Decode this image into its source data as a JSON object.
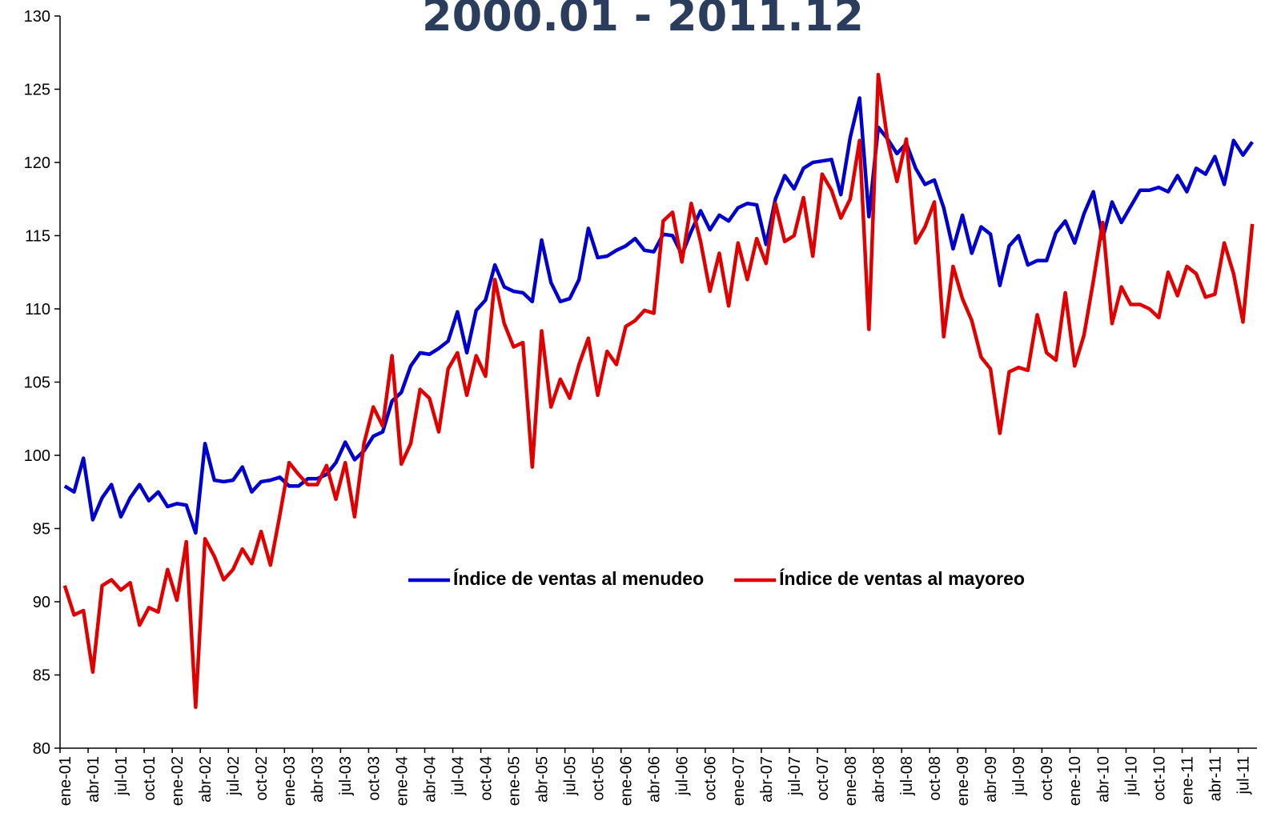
{
  "chart_data": {
    "type": "line",
    "title": "2000.01 - 2011.12",
    "categories": [
      "ene-01",
      null,
      null,
      "abr-01",
      null,
      null,
      "jul-01",
      null,
      null,
      "oct-01",
      null,
      null,
      "ene-02",
      null,
      null,
      "abr-02",
      null,
      null,
      "jul-02",
      null,
      null,
      "oct-02",
      null,
      null,
      "ene-03",
      null,
      null,
      "abr-03",
      null,
      null,
      "jul-03",
      null,
      null,
      "oct-03",
      null,
      null,
      "ene-04",
      null,
      null,
      "abr-04",
      null,
      null,
      "jul-04",
      null,
      null,
      "oct-04",
      null,
      null,
      "ene-05",
      null,
      null,
      "abr-05",
      null,
      null,
      "jul-05",
      null,
      null,
      "oct-05",
      null,
      null,
      "ene-06",
      null,
      null,
      "abr-06",
      null,
      null,
      "jul-06",
      null,
      null,
      "oct-06",
      null,
      null,
      "ene-07",
      null,
      null,
      "abr-07",
      null,
      null,
      "jul-07",
      null,
      null,
      "oct-07",
      null,
      null,
      "ene-08",
      null,
      null,
      "abr-08",
      null,
      null,
      "jul-08",
      null,
      null,
      "oct-08",
      null,
      null,
      "ene-09",
      null,
      null,
      "abr-09",
      null,
      null,
      "jul-09",
      null,
      null,
      "oct-09",
      null,
      null,
      "ene-10",
      null,
      null,
      "abr-10",
      null,
      null,
      "jul-10",
      null,
      null,
      "oct-10",
      null,
      null,
      "ene-11",
      null,
      null,
      "abr-11",
      null,
      null,
      "jul-11",
      null
    ],
    "series": [
      {
        "name": "Índice de ventas al menudeo",
        "color": "#0000cc",
        "values": [
          97.9,
          97.5,
          99.8,
          95.6,
          97.1,
          98.0,
          95.8,
          97.1,
          98.0,
          96.9,
          97.5,
          96.5,
          96.7,
          96.6,
          94.7,
          100.8,
          98.3,
          98.2,
          98.3,
          99.2,
          97.5,
          98.2,
          98.3,
          98.5,
          97.9,
          97.9,
          98.4,
          98.4,
          98.7,
          99.5,
          100.9,
          99.7,
          100.3,
          101.3,
          101.6,
          103.7,
          104.3,
          106.1,
          107.0,
          106.9,
          107.3,
          107.8,
          109.8,
          107.0,
          109.9,
          110.6,
          113.0,
          111.5,
          111.2,
          111.1,
          110.5,
          114.7,
          111.8,
          110.5,
          110.7,
          112.0,
          115.5,
          113.5,
          113.6,
          114.0,
          114.3,
          114.8,
          114.0,
          113.9,
          115.1,
          115.0,
          113.7,
          115.3,
          116.7,
          115.4,
          116.4,
          116.0,
          116.9,
          117.2,
          117.1,
          114.4,
          117.5,
          119.1,
          118.2,
          119.6,
          120.0,
          120.1,
          120.2,
          117.8,
          121.7,
          124.4,
          116.3,
          122.4,
          121.6,
          120.6,
          121.3,
          119.6,
          118.5,
          118.8,
          116.9,
          114.1,
          116.4,
          113.8,
          115.6,
          115.1,
          111.6,
          114.3,
          115.0,
          113.0,
          113.3,
          113.3,
          115.2,
          116.0,
          114.5,
          116.5,
          118.0,
          114.8,
          117.3,
          115.9,
          117.0,
          118.1,
          118.1,
          118.3,
          118.0,
          119.1,
          118.0,
          119.6,
          119.2,
          120.4,
          118.5,
          121.5,
          120.5,
          121.4
        ]
      },
      {
        "name": "Índice de ventas al mayoreo",
        "color": "#e00000",
        "values": [
          91.1,
          89.1,
          89.4,
          85.2,
          91.1,
          91.5,
          90.8,
          91.3,
          88.4,
          89.6,
          89.3,
          92.2,
          90.1,
          94.1,
          82.8,
          94.3,
          93.1,
          91.5,
          92.2,
          93.6,
          92.6,
          94.8,
          92.5,
          95.9,
          99.5,
          98.7,
          98.0,
          98.0,
          99.3,
          97.0,
          99.5,
          95.8,
          100.8,
          103.3,
          102.0,
          106.8,
          99.4,
          100.8,
          104.5,
          103.9,
          101.6,
          105.9,
          107.0,
          104.1,
          106.8,
          105.4,
          112.0,
          109.0,
          107.4,
          107.7,
          99.2,
          108.5,
          103.3,
          105.2,
          103.9,
          106.2,
          108.0,
          104.1,
          107.1,
          106.2,
          108.8,
          109.2,
          109.9,
          109.7,
          116.0,
          116.6,
          113.2,
          117.2,
          114.6,
          111.2,
          113.8,
          110.2,
          114.5,
          112.0,
          114.8,
          113.1,
          117.2,
          114.6,
          115.0,
          117.6,
          113.6,
          119.2,
          118.1,
          116.2,
          117.5,
          121.5,
          108.6,
          126.0,
          121.5,
          118.7,
          121.6,
          114.5,
          115.6,
          117.3,
          108.1,
          112.9,
          110.7,
          109.2,
          106.7,
          105.9,
          101.5,
          105.7,
          106.0,
          105.8,
          109.6,
          107.0,
          106.5,
          111.1,
          106.1,
          108.2,
          111.9,
          115.9,
          109.0,
          111.5,
          110.3,
          110.3,
          110.0,
          109.4,
          112.5,
          110.9,
          112.9,
          112.4,
          110.8,
          111.0,
          114.5,
          112.4,
          109.1,
          115.8
        ]
      }
    ],
    "ylim": [
      80,
      130
    ],
    "yticks": [
      80,
      85,
      90,
      95,
      100,
      105,
      110,
      115,
      120,
      125,
      130
    ],
    "grid": false,
    "legend": "center"
  }
}
